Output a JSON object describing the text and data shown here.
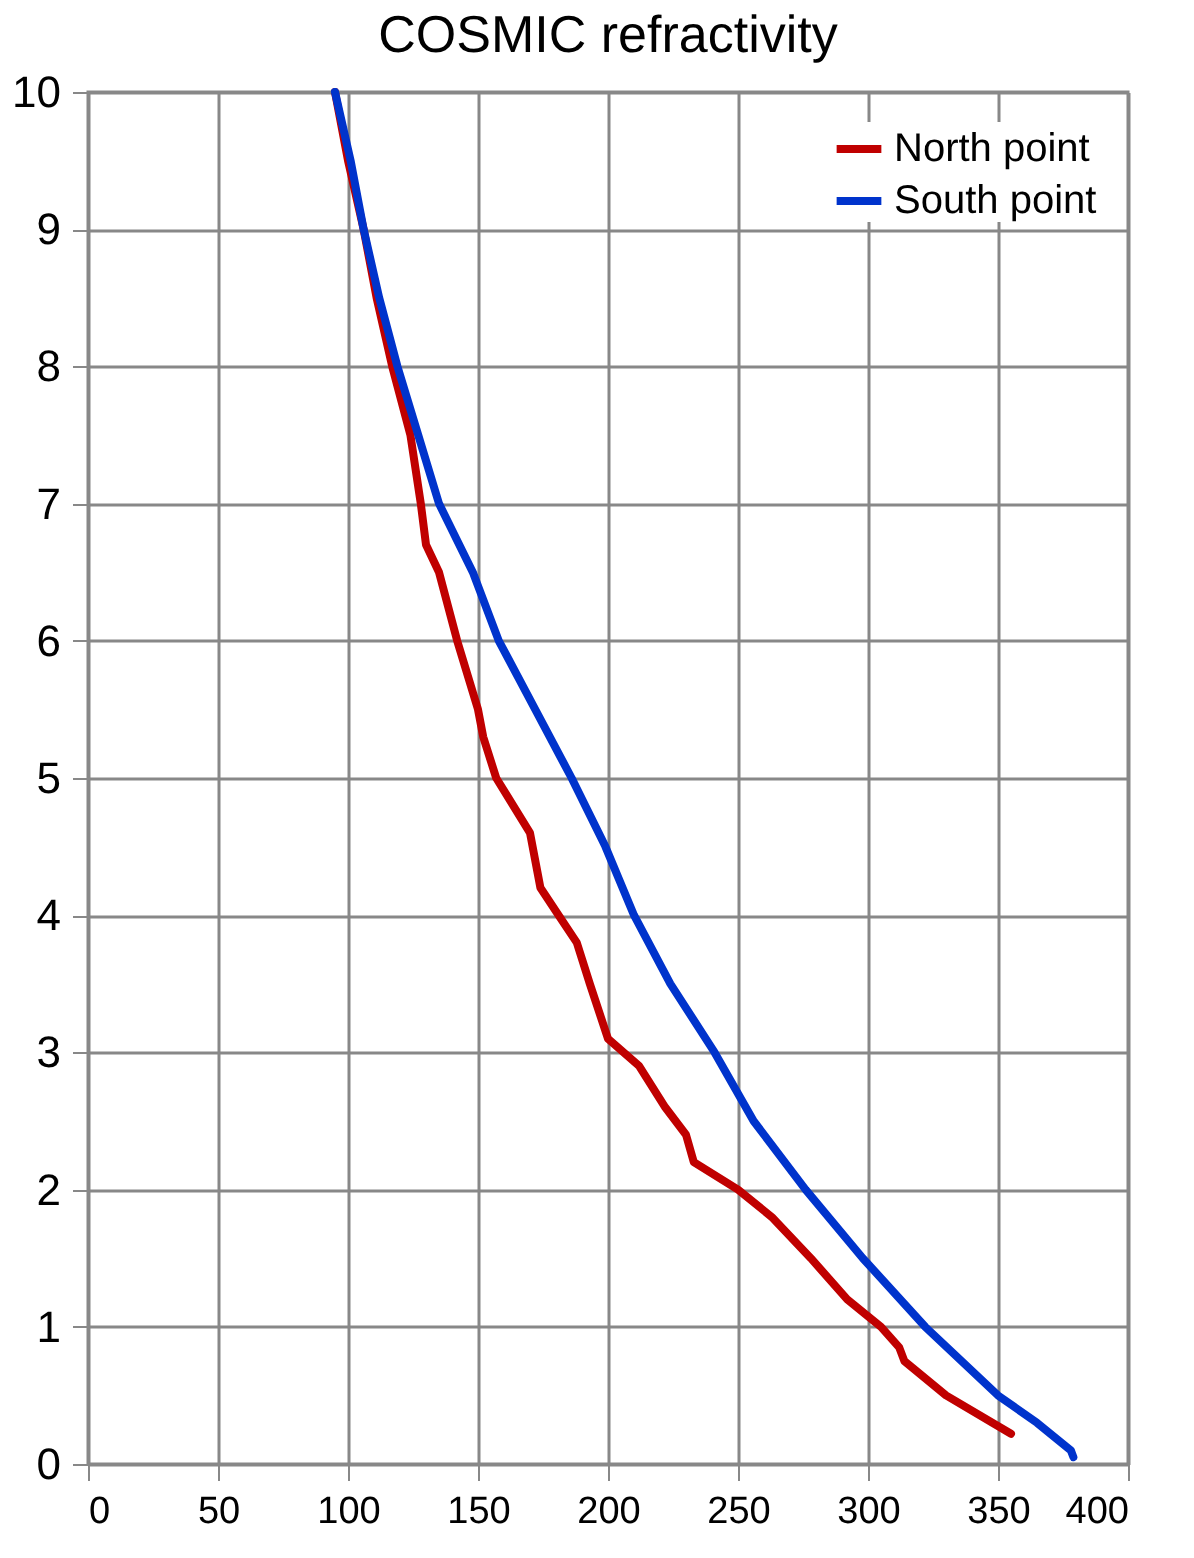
{
  "chart_data": {
    "type": "line",
    "title": "COSMIC refractivity",
    "series": [
      {
        "name": "North point",
        "color": "#c00000",
        "x": [
          95,
          100,
          106,
          111,
          117,
          124,
          128,
          130,
          135,
          142,
          150,
          152,
          157,
          170,
          173,
          174,
          181,
          188,
          193,
          200,
          212,
          222,
          230,
          233,
          250,
          263,
          278,
          292,
          305,
          312,
          314,
          330,
          355
        ],
        "values": [
          10,
          9.5,
          9,
          8.5,
          8,
          7.5,
          7,
          6.7,
          6.5,
          6,
          5.5,
          5.3,
          5,
          4.6,
          4.3,
          4.2,
          4,
          3.8,
          3.5,
          3.1,
          2.9,
          2.6,
          2.4,
          2.2,
          2.0,
          1.8,
          1.5,
          1.2,
          1.0,
          0.85,
          0.75,
          0.5,
          0.22
        ]
      },
      {
        "name": "South point",
        "color": "#0033cc",
        "x": [
          95,
          101,
          106,
          112,
          119,
          127,
          135,
          148,
          158,
          172,
          186,
          199,
          210,
          224,
          241,
          256,
          276,
          298,
          322,
          350,
          365,
          378,
          379
        ],
        "values": [
          10,
          9.5,
          9,
          8.5,
          8,
          7.5,
          7,
          6.5,
          6,
          5.5,
          5,
          4.5,
          4,
          3.5,
          3,
          2.5,
          2,
          1.5,
          1,
          0.5,
          0.3,
          0.1,
          0.05
        ]
      }
    ],
    "xlim": [
      0,
      400
    ],
    "xticks": [
      0,
      50,
      100,
      150,
      200,
      250,
      300,
      350,
      400
    ],
    "ylim": [
      0,
      10
    ],
    "yticks": [
      0,
      1,
      2,
      3,
      4,
      5,
      6,
      7,
      8,
      9,
      10
    ],
    "grid": true,
    "legend": "top right",
    "line_style": "solid",
    "marker": "none"
  }
}
